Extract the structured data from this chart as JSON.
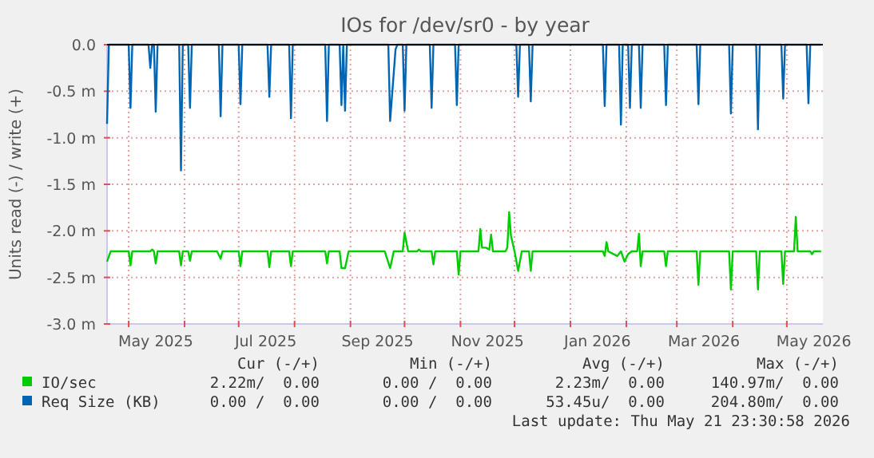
{
  "chart_data": {
    "type": "line",
    "title": "IOs for /dev/sr0 - by year",
    "ylabel": "Units read (-) / write (+)",
    "xlim": [
      "2025-04-19",
      "2026-05-21"
    ],
    "ylim": [
      -3.0,
      0.0
    ],
    "xticks": [
      {
        "value": "2025-05-01",
        "label": null
      },
      {
        "value": "2025-05-16",
        "label": "May 2025"
      },
      {
        "value": "2025-06-01",
        "label": null
      },
      {
        "value": "2025-07-01",
        "label": null
      },
      {
        "value": "2025-07-16",
        "label": "Jul 2025"
      },
      {
        "value": "2025-08-01",
        "label": null
      },
      {
        "value": "2025-09-01",
        "label": null
      },
      {
        "value": "2025-09-16",
        "label": "Sep 2025"
      },
      {
        "value": "2025-10-01",
        "label": null
      },
      {
        "value": "2025-11-01",
        "label": null
      },
      {
        "value": "2025-11-16",
        "label": "Nov 2025"
      },
      {
        "value": "2025-12-01",
        "label": null
      },
      {
        "value": "2026-01-01",
        "label": null
      },
      {
        "value": "2026-01-16",
        "label": "Jan 2026"
      },
      {
        "value": "2026-02-01",
        "label": null
      },
      {
        "value": "2026-03-01",
        "label": null
      },
      {
        "value": "2026-03-16",
        "label": "Mar 2026"
      },
      {
        "value": "2026-04-01",
        "label": null
      },
      {
        "value": "2026-05-01",
        "label": null
      },
      {
        "value": "2026-05-16",
        "label": "May 2026"
      }
    ],
    "yticks": [
      {
        "value": 0,
        "label": "0.0"
      },
      {
        "value": -0.5,
        "label": "-0.5 m"
      },
      {
        "value": -1.0,
        "label": "-1.0 m"
      },
      {
        "value": -1.5,
        "label": "-1.5 m"
      },
      {
        "value": -2.0,
        "label": "-2.0 m"
      },
      {
        "value": -2.5,
        "label": "-2.5 m"
      },
      {
        "value": -3.0,
        "label": "-3.0 m"
      }
    ],
    "grid": true,
    "legend": "bottom",
    "series": [
      {
        "name": "IO/sec",
        "color": "#00cc00",
        "x": [
          "2025-04-19",
          "2025-04-21",
          "2025-05-01",
          "2025-05-02",
          "2025-05-03",
          "2025-05-13",
          "2025-05-14",
          "2025-05-15",
          "2025-05-16",
          "2025-05-17",
          "2025-05-29",
          "2025-05-30",
          "2025-05-31",
          "2025-06-03",
          "2025-06-04",
          "2025-06-05",
          "2025-06-19",
          "2025-06-21",
          "2025-06-22",
          "2025-07-01",
          "2025-07-02",
          "2025-07-03",
          "2025-07-17",
          "2025-07-18",
          "2025-07-19",
          "2025-07-29",
          "2025-07-30",
          "2025-07-31",
          "2025-08-18",
          "2025-08-19",
          "2025-08-20",
          "2025-08-26",
          "2025-08-27",
          "2025-08-29",
          "2025-08-31",
          "2025-09-20",
          "2025-09-23",
          "2025-09-25",
          "2025-09-30",
          "2025-10-01",
          "2025-10-03",
          "2025-10-08",
          "2025-10-09",
          "2025-10-10",
          "2025-10-16",
          "2025-10-17",
          "2025-10-18",
          "2025-10-30",
          "2025-10-31",
          "2025-11-01",
          "2025-11-11",
          "2025-11-12",
          "2025-11-13",
          "2025-11-15",
          "2025-11-17",
          "2025-11-18",
          "2025-11-19",
          "2025-11-26",
          "2025-11-27",
          "2025-11-28",
          "2025-11-29",
          "2025-12-01",
          "2025-12-03",
          "2025-12-05",
          "2025-12-09",
          "2025-12-10",
          "2025-12-11",
          "2026-01-19",
          "2026-01-20",
          "2026-01-21",
          "2026-01-22",
          "2026-01-27",
          "2026-01-29",
          "2026-01-31",
          "2026-02-02",
          "2026-02-04",
          "2026-02-07",
          "2026-02-08",
          "2026-02-09",
          "2026-02-10",
          "2026-02-22",
          "2026-02-23",
          "2026-02-24",
          "2026-03-12",
          "2026-03-13",
          "2026-03-14",
          "2026-03-30",
          "2026-03-31",
          "2026-04-01",
          "2026-04-14",
          "2026-04-15",
          "2026-04-16",
          "2026-04-28",
          "2026-04-29",
          "2026-04-30",
          "2026-05-05",
          "2026-05-06",
          "2026-05-07",
          "2026-05-09",
          "2026-05-14",
          "2026-05-15",
          "2026-05-16",
          "2026-05-20"
        ],
        "values": [
          -2.33,
          -2.22,
          -2.22,
          -2.37,
          -2.22,
          -2.22,
          -2.2,
          -2.22,
          -2.35,
          -2.22,
          -2.22,
          -2.37,
          -2.22,
          -2.22,
          -2.32,
          -2.22,
          -2.22,
          -2.3,
          -2.22,
          -2.22,
          -2.38,
          -2.22,
          -2.22,
          -2.39,
          -2.22,
          -2.22,
          -2.38,
          -2.22,
          -2.22,
          -2.35,
          -2.22,
          -2.22,
          -2.4,
          -2.4,
          -2.22,
          -2.22,
          -2.4,
          -2.22,
          -2.22,
          -2.02,
          -2.22,
          -2.22,
          -2.2,
          -2.22,
          -2.22,
          -2.36,
          -2.22,
          -2.22,
          -2.47,
          -2.22,
          -2.22,
          -1.98,
          -2.18,
          -2.18,
          -2.2,
          -2.04,
          -2.22,
          -2.22,
          -2.18,
          -1.8,
          -2.05,
          -2.22,
          -2.43,
          -2.22,
          -2.22,
          -2.43,
          -2.22,
          -2.22,
          -2.27,
          -2.12,
          -2.22,
          -2.27,
          -2.22,
          -2.33,
          -2.25,
          -2.22,
          -2.22,
          -2.03,
          -2.38,
          -2.22,
          -2.22,
          -2.38,
          -2.22,
          -2.22,
          -2.58,
          -2.22,
          -2.22,
          -2.63,
          -2.22,
          -2.22,
          -2.63,
          -2.22,
          -2.22,
          -2.57,
          -2.22,
          -2.22,
          -1.85,
          -2.22,
          -2.22,
          -2.22,
          -2.25,
          -2.22,
          -2.22
        ]
      },
      {
        "name": "Req Size (KB)",
        "color": "#0066b3",
        "x": [
          "2025-04-19",
          "2025-04-20",
          "2025-05-01",
          "2025-05-02",
          "2025-05-03",
          "2025-05-12",
          "2025-05-13",
          "2025-05-14",
          "2025-05-15",
          "2025-05-16",
          "2025-05-17",
          "2025-05-29",
          "2025-05-30",
          "2025-05-31",
          "2025-06-03",
          "2025-06-04",
          "2025-06-05",
          "2025-06-15",
          "2025-06-20",
          "2025-06-21",
          "2025-06-22",
          "2025-07-01",
          "2025-07-02",
          "2025-07-03",
          "2025-07-17",
          "2025-07-18",
          "2025-07-19",
          "2025-07-29",
          "2025-07-30",
          "2025-07-31",
          "2025-08-18",
          "2025-08-19",
          "2025-08-20",
          "2025-08-26",
          "2025-08-27",
          "2025-08-28",
          "2025-08-29",
          "2025-08-30",
          "2025-09-20",
          "2025-09-22",
          "2025-09-23",
          "2025-09-26",
          "2025-09-27",
          "2025-09-30",
          "2025-10-01",
          "2025-10-02",
          "2025-10-15",
          "2025-10-16",
          "2025-10-17",
          "2025-10-29",
          "2025-10-30",
          "2025-10-31",
          "2025-12-02",
          "2025-12-03",
          "2025-12-04",
          "2025-12-09",
          "2025-12-10",
          "2025-12-11",
          "2026-01-19",
          "2026-01-20",
          "2026-01-21",
          "2026-01-28",
          "2026-01-29",
          "2026-01-30",
          "2026-02-02",
          "2026-02-03",
          "2026-02-04",
          "2026-02-08",
          "2026-02-09",
          "2026-02-10",
          "2026-02-22",
          "2026-02-23",
          "2026-02-24",
          "2026-03-12",
          "2026-03-13",
          "2026-03-14",
          "2026-03-30",
          "2026-03-31",
          "2026-04-01",
          "2026-04-14",
          "2026-04-15",
          "2026-04-16",
          "2026-04-28",
          "2026-04-29",
          "2026-04-30",
          "2026-05-12",
          "2026-05-13",
          "2026-05-14",
          "2026-05-20"
        ],
        "values": [
          -0.85,
          0,
          0,
          -0.68,
          0,
          0,
          -0.25,
          0,
          0,
          -0.72,
          0,
          0,
          -1.35,
          0,
          0,
          -0.68,
          0,
          0,
          0,
          -0.77,
          0,
          0,
          -0.64,
          0,
          0,
          -0.56,
          0,
          0,
          -0.79,
          0,
          0,
          -0.82,
          0,
          0,
          -0.65,
          0,
          -0.71,
          0,
          0,
          0,
          -0.82,
          -0.05,
          0,
          0,
          -0.71,
          0,
          0,
          -0.68,
          0,
          0,
          -0.65,
          0,
          0,
          -0.56,
          0,
          0,
          -0.61,
          0,
          0,
          -0.66,
          0,
          0,
          -0.86,
          0,
          0,
          -0.68,
          0,
          0,
          -0.68,
          0,
          0,
          -0.65,
          0,
          0,
          -0.64,
          0,
          0,
          -0.74,
          0,
          0,
          -0.91,
          0,
          0,
          -0.58,
          0,
          0,
          -0.63,
          0,
          0
        ]
      }
    ],
    "annotations": [
      "Cur (-/+)",
      "Min (-/+)",
      "Avg (-/+)",
      "Max (-/+)",
      "2.22m/  0.00",
      "0.00 /  0.00",
      "2.23m/  0.00",
      "140.97m/  0.00",
      "0.00 /  0.00",
      "0.00 /  0.00",
      "53.45u/  0.00",
      "204.80m/  0.00",
      "Last update: Thu May 21 23:30:58 2026"
    ]
  }
}
